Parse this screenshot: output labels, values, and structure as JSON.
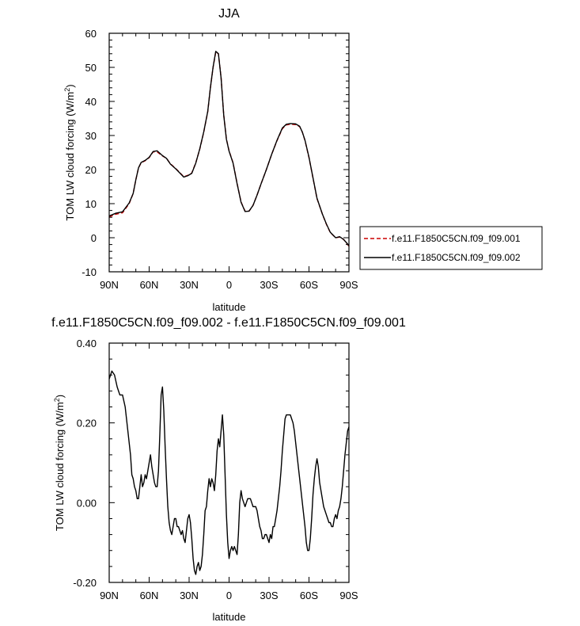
{
  "chart_data": [
    {
      "type": "line",
      "title": "JJA",
      "xlabel": "latitude",
      "ylabel": "TOM LW cloud forcing (W/m",
      "ylabel_sup": "2",
      "ylabel_end": ")",
      "xlim": [
        90,
        -90
      ],
      "ylim": [
        -10,
        60
      ],
      "x_ticks": [
        90,
        60,
        30,
        0,
        -30,
        -60,
        -90
      ],
      "x_tick_labels": [
        "90N",
        "60N",
        "30N",
        "0",
        "30S",
        "60S",
        "90S"
      ],
      "y_ticks": [
        -10,
        0,
        10,
        20,
        30,
        40,
        50,
        60
      ],
      "y_tick_labels": [
        "-10",
        "0",
        "10",
        "20",
        "30",
        "40",
        "50",
        "60"
      ],
      "grid": false,
      "legend": "right",
      "series": [
        {
          "name": "f.e11.F1850C5CN.f09_f09.001",
          "color": "#cc0000",
          "dash": "dashed",
          "x": [
            90,
            85,
            80,
            75,
            72,
            70,
            68,
            66,
            63,
            60,
            57,
            54,
            50,
            47,
            44,
            40,
            37,
            34,
            31,
            28,
            25,
            22,
            19,
            16,
            14,
            12,
            10,
            8,
            6,
            4,
            2,
            0,
            -3,
            -6,
            -9,
            -12,
            -15,
            -18,
            -21,
            -24,
            -28,
            -32,
            -36,
            -40,
            -43,
            -46,
            -50,
            -53,
            -55,
            -57,
            -60,
            -63,
            -66,
            -70,
            -73,
            -76,
            -80,
            -83,
            -86,
            -88,
            -90
          ],
          "y": [
            6.1,
            6.9,
            7.3,
            10.0,
            13.0,
            17.0,
            20.5,
            22.0,
            22.6,
            23.5,
            25.2,
            25.2,
            24.0,
            23.3,
            21.7,
            20.3,
            19.1,
            17.9,
            18.3,
            19.0,
            22.0,
            26.0,
            31.0,
            37.0,
            44.0,
            50.0,
            54.5,
            54.0,
            47.0,
            36.0,
            29.0,
            25.5,
            22.0,
            16.0,
            10.5,
            7.8,
            7.8,
            9.5,
            12.5,
            15.8,
            20.0,
            24.5,
            28.5,
            32.0,
            33.1,
            33.3,
            33.2,
            32.6,
            31.0,
            28.5,
            23.5,
            17.5,
            11.5,
            7.0,
            4.0,
            1.5,
            0.0,
            0.2,
            -0.5,
            -1.5,
            -2.5
          ]
        },
        {
          "name": "f.e11.F1850C5CN.f09_f09.002",
          "color": "#000000",
          "dash": "solid",
          "x": [
            90,
            85,
            80,
            75,
            72,
            70,
            68,
            66,
            63,
            60,
            57,
            54,
            50,
            47,
            44,
            40,
            37,
            34,
            31,
            28,
            25,
            22,
            19,
            16,
            14,
            12,
            10,
            8,
            6,
            4,
            2,
            0,
            -3,
            -6,
            -9,
            -12,
            -15,
            -18,
            -21,
            -24,
            -28,
            -32,
            -36,
            -40,
            -43,
            -46,
            -50,
            -53,
            -55,
            -57,
            -60,
            -63,
            -66,
            -70,
            -73,
            -76,
            -80,
            -83,
            -86,
            -88,
            -90
          ],
          "y": [
            6.4,
            7.2,
            7.6,
            10.2,
            13.0,
            17.0,
            20.5,
            22.1,
            22.7,
            23.6,
            25.3,
            25.5,
            24.1,
            23.3,
            21.6,
            20.2,
            19.0,
            17.8,
            18.2,
            18.9,
            21.9,
            26.1,
            31.1,
            37.1,
            44.1,
            50.1,
            54.7,
            54.0,
            46.9,
            35.9,
            28.9,
            25.4,
            21.9,
            15.9,
            10.4,
            7.7,
            7.8,
            9.5,
            12.5,
            15.8,
            20.0,
            24.5,
            28.6,
            32.2,
            33.3,
            33.5,
            33.4,
            32.7,
            31.0,
            28.6,
            23.6,
            17.6,
            11.6,
            7.0,
            4.1,
            1.6,
            0.0,
            0.3,
            -0.5,
            -1.4,
            -2.3
          ]
        }
      ]
    },
    {
      "type": "line",
      "title": "f.e11.F1850C5CN.f09_f09.002 - f.e11.F1850C5CN.f09_f09.001",
      "xlabel": "latitude",
      "ylabel": "TOM LW cloud forcing (W/m",
      "ylabel_sup": "2",
      "ylabel_end": ")",
      "xlim": [
        90,
        -90
      ],
      "ylim": [
        -0.2,
        0.4
      ],
      "x_ticks": [
        90,
        60,
        30,
        0,
        -30,
        -60,
        -90
      ],
      "x_tick_labels": [
        "90N",
        "60N",
        "30N",
        "0",
        "30S",
        "60S",
        "90S"
      ],
      "y_ticks": [
        -0.2,
        0,
        0.2,
        0.4
      ],
      "y_tick_labels": [
        "-0.20",
        "0.00",
        "0.20",
        "0.40"
      ],
      "grid": false,
      "legend": "none",
      "series": [
        {
          "color": "#000000",
          "dash": "solid",
          "x": [
            90,
            88,
            86,
            84,
            82,
            80,
            78,
            76,
            74,
            73,
            72,
            71,
            70,
            69,
            68,
            67,
            66,
            65,
            64,
            63,
            62,
            61,
            60,
            59,
            58,
            57,
            56,
            55,
            54,
            53,
            52,
            51,
            50,
            49,
            48,
            47,
            46,
            45,
            44,
            43,
            42,
            41,
            40,
            39,
            38,
            37,
            36,
            35,
            34,
            33,
            32,
            31,
            30,
            29,
            28,
            27,
            26,
            25,
            24,
            23,
            22,
            21,
            20,
            19,
            18,
            17,
            16,
            15,
            14,
            13,
            12,
            11,
            10,
            9,
            8,
            7,
            6,
            5,
            4,
            3,
            2,
            1,
            0,
            -1,
            -2,
            -3,
            -4,
            -5,
            -6,
            -7,
            -8,
            -9,
            -10,
            -11,
            -12,
            -13,
            -14,
            -15,
            -16,
            -17,
            -18,
            -19,
            -20,
            -21,
            -22,
            -23,
            -24,
            -25,
            -26,
            -27,
            -28,
            -29,
            -30,
            -31,
            -32,
            -33,
            -34,
            -35,
            -36,
            -37,
            -38,
            -39,
            -40,
            -41,
            -42,
            -43,
            -44,
            -45,
            -46,
            -47,
            -48,
            -49,
            -50,
            -51,
            -52,
            -53,
            -54,
            -55,
            -56,
            -57,
            -58,
            -59,
            -60,
            -61,
            -62,
            -63,
            -64,
            -65,
            -66,
            -67,
            -68,
            -69,
            -70,
            -71,
            -72,
            -73,
            -74,
            -75,
            -76,
            -77,
            -78,
            -79,
            -80,
            -81,
            -82,
            -83,
            -84,
            -85,
            -86,
            -87,
            -88,
            -89,
            -90
          ],
          "y": [
            0.31,
            0.33,
            0.32,
            0.29,
            0.27,
            0.27,
            0.24,
            0.18,
            0.12,
            0.07,
            0.06,
            0.04,
            0.03,
            0.01,
            0.01,
            0.04,
            0.07,
            0.04,
            0.05,
            0.07,
            0.06,
            0.08,
            0.1,
            0.12,
            0.09,
            0.07,
            0.05,
            0.04,
            0.04,
            0.08,
            0.17,
            0.27,
            0.29,
            0.23,
            0.14,
            0.06,
            -0.01,
            -0.05,
            -0.07,
            -0.08,
            -0.06,
            -0.04,
            -0.04,
            -0.06,
            -0.06,
            -0.07,
            -0.08,
            -0.07,
            -0.09,
            -0.1,
            -0.07,
            -0.04,
            -0.03,
            -0.05,
            -0.09,
            -0.14,
            -0.17,
            -0.18,
            -0.16,
            -0.15,
            -0.17,
            -0.16,
            -0.13,
            -0.08,
            -0.02,
            -0.01,
            0.03,
            0.06,
            0.04,
            0.06,
            0.05,
            0.03,
            0.07,
            0.13,
            0.16,
            0.14,
            0.18,
            0.22,
            0.17,
            0.07,
            -0.03,
            -0.1,
            -0.14,
            -0.12,
            -0.11,
            -0.12,
            -0.11,
            -0.12,
            -0.13,
            -0.08,
            0.0,
            0.03,
            0.01,
            0.0,
            -0.01,
            0.0,
            0.01,
            0.01,
            0.01,
            0.0,
            -0.01,
            -0.01,
            -0.01,
            -0.02,
            -0.04,
            -0.06,
            -0.07,
            -0.09,
            -0.09,
            -0.08,
            -0.08,
            -0.09,
            -0.1,
            -0.08,
            -0.09,
            -0.06,
            -0.06,
            -0.04,
            -0.02,
            0.01,
            0.04,
            0.08,
            0.13,
            0.17,
            0.21,
            0.22,
            0.22,
            0.22,
            0.22,
            0.21,
            0.2,
            0.18,
            0.15,
            0.12,
            0.09,
            0.06,
            0.03,
            0.0,
            -0.03,
            -0.06,
            -0.1,
            -0.12,
            -0.12,
            -0.09,
            -0.04,
            0.02,
            0.06,
            0.09,
            0.11,
            0.09,
            0.05,
            0.03,
            0.01,
            -0.01,
            -0.02,
            -0.03,
            -0.04,
            -0.05,
            -0.05,
            -0.06,
            -0.06,
            -0.04,
            -0.03,
            -0.04,
            -0.02,
            -0.01,
            0.01,
            0.04,
            0.08,
            0.12,
            0.15,
            0.18,
            0.19
          ]
        }
      ]
    }
  ]
}
